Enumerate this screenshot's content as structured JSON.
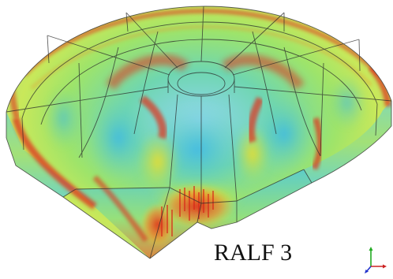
{
  "figure": {
    "caption": "RALF 3",
    "colors": {
      "low": "#1fb8e0",
      "mid_low": "#33d68a",
      "mid": "#b6e64a",
      "mid_high": "#f2dd2a",
      "high": "#e0301c",
      "wireframe": "#2a2a2a"
    }
  },
  "axes_triad": {
    "icon": "xyz-axes-icon",
    "colors": {
      "x": "#cc2222",
      "y": "#22aa22",
      "z": "#2233cc"
    }
  }
}
